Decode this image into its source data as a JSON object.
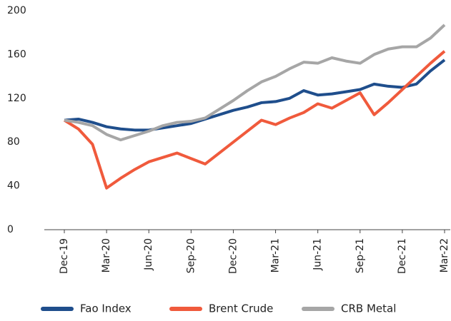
{
  "chart_data": {
    "type": "line",
    "categories": [
      "Dec-19",
      null,
      null,
      "Mar-20",
      null,
      null,
      "Jun-20",
      null,
      null,
      "Sep-20",
      null,
      null,
      "Dec-20",
      null,
      null,
      "Mar-21",
      null,
      null,
      "Jun-21",
      null,
      null,
      "Sep-21",
      null,
      null,
      "Dec-21",
      null,
      null,
      "Mar-22"
    ],
    "series": [
      {
        "name": "Fao Index",
        "color": "#1f4e8c",
        "values": [
          100,
          101,
          98,
          94,
          92,
          91,
          91,
          93,
          95,
          97,
          101,
          105,
          109,
          112,
          116,
          117,
          120,
          127,
          123,
          124,
          126,
          128,
          133,
          131,
          130,
          133,
          145,
          155
        ]
      },
      {
        "name": "Brent Crude",
        "color": "#f05a3c",
        "values": [
          100,
          92,
          78,
          38,
          47,
          55,
          62,
          66,
          70,
          65,
          60,
          70,
          80,
          90,
          100,
          96,
          102,
          107,
          115,
          111,
          118,
          125,
          105,
          116,
          128,
          140,
          152,
          163
        ]
      },
      {
        "name": "CRB Metal",
        "color": "#a6a6a6",
        "values": [
          100,
          98,
          95,
          87,
          82,
          86,
          90,
          95,
          98,
          99,
          102,
          110,
          118,
          127,
          135,
          140,
          147,
          153,
          152,
          157,
          154,
          152,
          160,
          165,
          167,
          167,
          175,
          187
        ]
      }
    ],
    "ylim": [
      0,
      200
    ],
    "yticks": [
      0,
      40,
      80,
      120,
      160,
      200
    ],
    "legend": "bottom"
  }
}
